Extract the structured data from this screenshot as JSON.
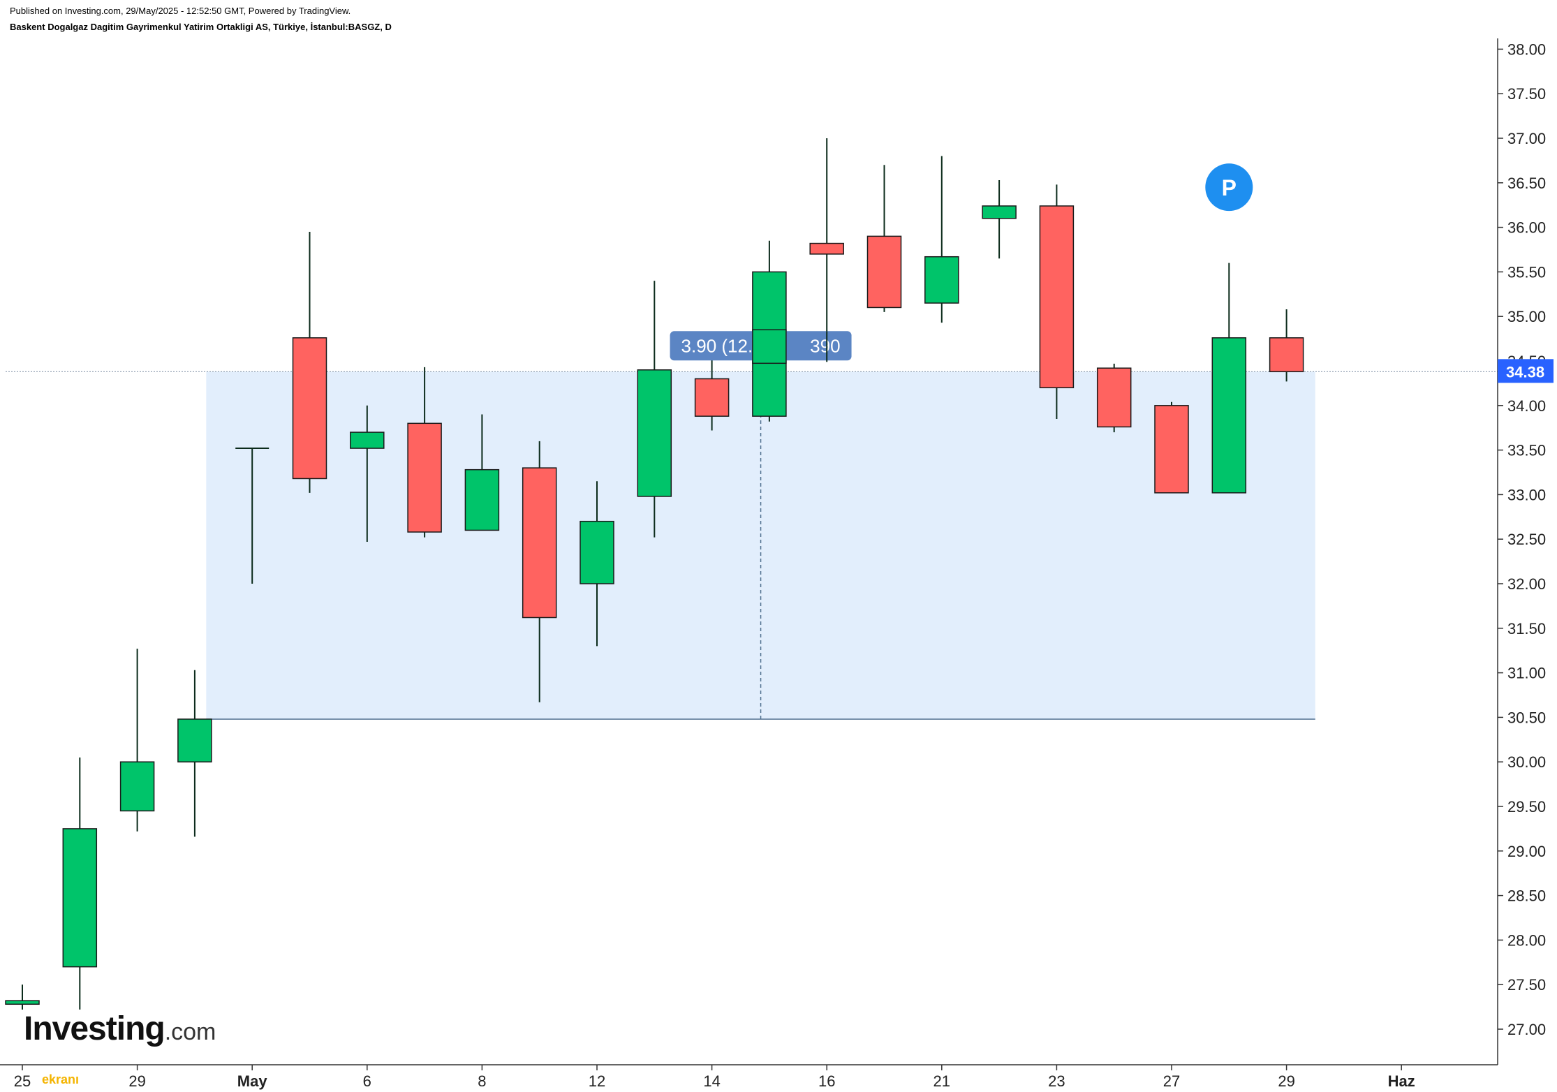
{
  "header": {
    "published": "Published on Investing.com, 29/May/2025 - 12:52:50 GMT, Powered by TradingView.",
    "symbol": "Baskent Dogalgaz Dagitim Gayrimenkul Yatirim Ortakligi AS, Türkiye, İstanbul:BASGZ, D"
  },
  "logo": {
    "name": "Investing",
    "suffix": ".com"
  },
  "watermark": "ekranı",
  "chart_data": {
    "type": "candlestick",
    "title": "",
    "ylim": [
      26.6,
      38.2
    ],
    "yticks": [
      "27.00",
      "27.50",
      "28.00",
      "28.50",
      "29.00",
      "29.50",
      "30.00",
      "30.50",
      "31.00",
      "31.50",
      "32.00",
      "32.50",
      "33.00",
      "33.50",
      "34.00",
      "34.50",
      "35.00",
      "35.50",
      "36.00",
      "36.50",
      "37.00",
      "37.50",
      "38.00"
    ],
    "xticks": [
      {
        "label": "25",
        "index": 0,
        "major": false
      },
      {
        "label": "29",
        "index": 2,
        "major": false
      },
      {
        "label": "May",
        "index": 4,
        "major": true
      },
      {
        "label": "6",
        "index": 6,
        "major": false
      },
      {
        "label": "8",
        "index": 8,
        "major": false
      },
      {
        "label": "12",
        "index": 10,
        "major": false
      },
      {
        "label": "14",
        "index": 12,
        "major": false
      },
      {
        "label": "16",
        "index": 14,
        "major": false
      },
      {
        "label": "21",
        "index": 16,
        "major": false
      },
      {
        "label": "23",
        "index": 18,
        "major": false
      },
      {
        "label": "27",
        "index": 20,
        "major": false
      },
      {
        "label": "29",
        "index": 22,
        "major": false
      },
      {
        "label": "Haz",
        "index": 24,
        "major": true
      }
    ],
    "candles": [
      {
        "o": 27.28,
        "h": 27.5,
        "l": 27.22,
        "c": 27.32
      },
      {
        "o": 27.7,
        "h": 30.05,
        "l": 27.22,
        "c": 29.25
      },
      {
        "o": 29.45,
        "h": 31.27,
        "l": 29.22,
        "c": 30.0
      },
      {
        "o": 30.0,
        "h": 31.03,
        "l": 29.16,
        "c": 30.48
      },
      {
        "o": 33.52,
        "h": 33.52,
        "l": 32.0,
        "c": 33.52
      },
      {
        "o": 34.76,
        "h": 35.95,
        "l": 33.02,
        "c": 33.18
      },
      {
        "o": 33.52,
        "h": 34.0,
        "l": 32.47,
        "c": 33.7
      },
      {
        "o": 33.8,
        "h": 34.43,
        "l": 32.52,
        "c": 32.58
      },
      {
        "o": 32.6,
        "h": 33.9,
        "l": 32.6,
        "c": 33.28
      },
      {
        "o": 33.3,
        "h": 33.6,
        "l": 30.67,
        "c": 31.62
      },
      {
        "o": 32.0,
        "h": 33.15,
        "l": 31.3,
        "c": 32.7
      },
      {
        "o": 32.98,
        "h": 35.4,
        "l": 32.52,
        "c": 34.4
      },
      {
        "o": 34.3,
        "h": 34.7,
        "l": 33.72,
        "c": 33.88
      },
      {
        "o": 33.88,
        "h": 35.85,
        "l": 33.82,
        "c": 35.5
      },
      {
        "o": 35.82,
        "h": 37.0,
        "l": 34.8,
        "c": 35.7
      },
      {
        "o": 35.9,
        "h": 36.7,
        "l": 35.05,
        "c": 35.1
      },
      {
        "o": 35.15,
        "h": 36.8,
        "l": 34.93,
        "c": 35.67
      },
      {
        "o": 36.1,
        "h": 36.53,
        "l": 35.65,
        "c": 36.24
      },
      {
        "o": 36.24,
        "h": 36.48,
        "l": 33.85,
        "c": 34.2
      },
      {
        "o": 34.42,
        "h": 34.47,
        "l": 33.7,
        "c": 33.76
      },
      {
        "o": 34.0,
        "h": 34.04,
        "l": 33.02,
        "c": 33.02
      },
      {
        "o": 33.02,
        "h": 35.6,
        "l": 33.02,
        "c": 34.76
      },
      {
        "o": 34.76,
        "h": 35.08,
        "l": 34.27,
        "c": 34.38
      }
    ],
    "last_price": "34.38",
    "measure": {
      "label_left": "3.90 (12.80",
      "label_right": "390",
      "from_value": 30.48,
      "to_value": 34.38,
      "from_index": 3.2,
      "to_index": 22.5
    },
    "marker": {
      "label": "P",
      "index": 21,
      "value": 36.45
    },
    "colors": {
      "up": "#00c46a",
      "down": "#ff6360",
      "wick": "#0b2b1b",
      "measure_fill": "#e2eefc",
      "measure_line": "#4f6f8f",
      "label_bg": "#5b85c4",
      "price_tag": "#2962ff",
      "marker": "#1e8ff0"
    }
  }
}
